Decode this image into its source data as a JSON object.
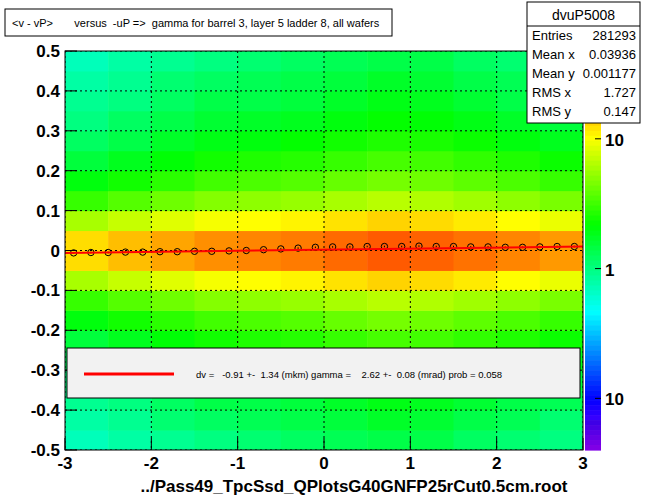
{
  "chart_data": {
    "type": "heatmap",
    "title": "<v - vP>       versus  -uP =>  gamma for barrel 3, layer 5 ladder 8, all wafers",
    "x_label": "../Pass49_TpcSsd_QPlotsG40GNFP25rCut0.5cm.root",
    "xlim": [
      -3,
      3
    ],
    "ylim": [
      -0.5,
      0.5
    ],
    "xticks": [
      -3,
      -2,
      -1,
      0,
      1,
      2,
      3
    ],
    "yticks": [
      -0.5,
      -0.4,
      -0.3,
      -0.2,
      -0.1,
      0,
      0.1,
      0.2,
      0.3,
      0.4,
      0.5
    ],
    "grid": true,
    "x_bins": [
      -3,
      -2.5,
      -2,
      -1.5,
      -1,
      -0.5,
      0,
      0.5,
      1,
      1.5,
      2,
      2.5,
      3
    ],
    "y_bins": [
      -0.5,
      -0.45,
      -0.4,
      -0.35,
      -0.3,
      -0.25,
      -0.2,
      -0.15,
      -0.1,
      -0.05,
      0,
      0.05,
      0.1,
      0.15,
      0.2,
      0.25,
      0.3,
      0.35,
      0.4,
      0.45,
      0.5
    ],
    "cells": [
      [
        0.7,
        0.8,
        0.9,
        1,
        1.1,
        1.2,
        1.3,
        1.4,
        1.4,
        1.2,
        1.1,
        1
      ],
      [
        0.8,
        0.9,
        1.1,
        1.2,
        1.3,
        1.4,
        1.5,
        1.7,
        1.6,
        1.4,
        1.3,
        1.1
      ],
      [
        0.9,
        1,
        1.2,
        1.4,
        1.4,
        1.5,
        1.7,
        1.9,
        1.8,
        1.6,
        1.4,
        1.3
      ],
      [
        1,
        1.2,
        1.4,
        1.6,
        1.7,
        1.8,
        2,
        2.2,
        2.1,
        1.9,
        1.7,
        1.5
      ],
      [
        1.2,
        1.4,
        1.7,
        1.9,
        2,
        2.2,
        2.4,
        2.6,
        2.5,
        2.3,
        2,
        1.8
      ],
      [
        1.5,
        1.8,
        2.1,
        2.4,
        2.6,
        2.7,
        3,
        3.3,
        3.2,
        2.9,
        2.6,
        2.3
      ],
      [
        2,
        2.4,
        2.8,
        3.2,
        3.4,
        3.6,
        4,
        4.4,
        4.2,
        3.8,
        3.4,
        3
      ],
      [
        3,
        3.6,
        4.2,
        4.8,
        5.1,
        5.4,
        6,
        6.6,
        6.3,
        5.7,
        5.1,
        4.5
      ],
      [
        6,
        7.2,
        8.4,
        9.6,
        10.2,
        10.8,
        12,
        13.2,
        12.6,
        11.4,
        10.2,
        9
      ],
      [
        12.5,
        15,
        17.5,
        20,
        21.3,
        22.5,
        25,
        27.5,
        26.3,
        23.8,
        21.3,
        18.8
      ],
      [
        12.5,
        15,
        17.5,
        20,
        21.3,
        22.5,
        25,
        27.5,
        26.3,
        23.8,
        21.3,
        18.8
      ],
      [
        6,
        7.2,
        8.4,
        9.6,
        10.2,
        10.8,
        12,
        13.2,
        12.6,
        11.4,
        10.2,
        9
      ],
      [
        3,
        3.6,
        4.2,
        4.8,
        5.1,
        5.4,
        6,
        6.6,
        6.3,
        5.7,
        5.1,
        4.5
      ],
      [
        2,
        2.4,
        2.8,
        3.2,
        3.4,
        3.6,
        4,
        4.4,
        4.2,
        3.8,
        3.4,
        3
      ],
      [
        1.5,
        1.8,
        2.1,
        2.4,
        2.6,
        2.7,
        3,
        3.3,
        3.2,
        2.9,
        2.6,
        2.3
      ],
      [
        1.2,
        1.4,
        1.7,
        1.9,
        2,
        2.2,
        2.4,
        2.6,
        2.5,
        2.3,
        2,
        1.8
      ],
      [
        1,
        1.2,
        1.4,
        1.6,
        1.7,
        1.8,
        2,
        2.2,
        2.1,
        1.9,
        1.7,
        1.5
      ],
      [
        0.9,
        1,
        1.2,
        1.4,
        1.4,
        1.5,
        1.7,
        1.9,
        1.8,
        1.6,
        1.4,
        1.3
      ],
      [
        0.8,
        0.9,
        1.1,
        1.2,
        1.3,
        1.4,
        1.5,
        1.7,
        1.6,
        1.4,
        1.3,
        1.1
      ],
      [
        0.7,
        0.8,
        0.9,
        1,
        1.1,
        1.2,
        1.3,
        1.4,
        1.4,
        1.2,
        1.1,
        1
      ]
    ],
    "colorbar": {
      "range": [
        0.04,
        47.5
      ],
      "ticks": [
        {
          "value": 0.1,
          "label": "10"
        },
        1,
        10
      ]
    },
    "series": [
      {
        "type": "scatter",
        "marker": "circle",
        "color": "#000000",
        "x": [
          -2.9,
          -2.7,
          -2.5,
          -2.3,
          -2.1,
          -1.9,
          -1.7,
          -1.5,
          -1.3,
          -1.1,
          -0.9,
          -0.7,
          -0.5,
          -0.3,
          -0.1,
          0.1,
          0.3,
          0.5,
          0.7,
          0.9,
          1.1,
          1.3,
          1.5,
          1.7,
          1.9,
          2.1,
          2.3,
          2.5,
          2.7,
          2.9
        ],
        "values": [
          -0.006,
          -0.005,
          -0.005,
          -0.004,
          -0.004,
          -0.003,
          -0.003,
          -0.002,
          -0.002,
          -0.001,
          0,
          0.002,
          0.004,
          0.006,
          0.008,
          0.009,
          0.009,
          0.01,
          0.01,
          0.01,
          0.011,
          0.01,
          0.01,
          0.009,
          0.009,
          0.008,
          0.008,
          0.009,
          0.01,
          0.01
        ],
        "errors": [
          0.002,
          0.002,
          0.002,
          0.002,
          0.002,
          0.002,
          0.002,
          0.002,
          0.002,
          0.002,
          0.002,
          0.002,
          0.002,
          0.002,
          0.002,
          0.002,
          0.002,
          0.002,
          0.002,
          0.002,
          0.002,
          0.002,
          0.002,
          0.002,
          0.002,
          0.002,
          0.002,
          0.002,
          0.002,
          0.002
        ]
      },
      {
        "type": "line",
        "color": "#ff0000",
        "line_style": "solid",
        "name": "dv =   -0.91 +-  1.34 (mkm) gamma =    2.62 +-  0.08 (mrad) prob = 0.058",
        "x": [
          -3,
          3
        ],
        "values": [
          -0.006,
          0.01
        ]
      }
    ],
    "stats": {
      "name": "dvuP5008",
      "rows": [
        {
          "label": "Entries",
          "value": 281293
        },
        {
          "label": "Mean x",
          "value": 0.03936
        },
        {
          "label": "Mean y",
          "value": 0.001177
        },
        {
          "label": "RMS x",
          "value": 1.727
        },
        {
          "label": "RMS y",
          "value": 0.147
        }
      ]
    }
  }
}
